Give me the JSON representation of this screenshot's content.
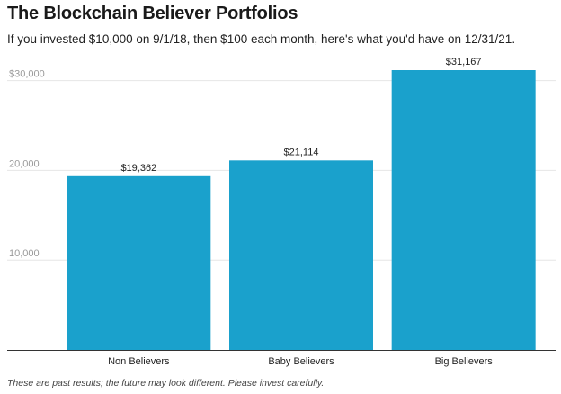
{
  "title": "The Blockchain Believer Portfolios",
  "subtitle": "If you invested $10,000 on 9/1/18, then $100 each month, here's what you'd have on 12/31/21.",
  "footnote": "These are past results; the future may look different. Please invest carefully.",
  "colors": {
    "bar": "#1aa1cc",
    "grid": "#e6e6e6",
    "axis": "#333333"
  },
  "chart_data": {
    "type": "bar",
    "title": "The Blockchain Believer Portfolios",
    "subtitle": "If you invested $10,000 on 9/1/18, then $100 each month, here's what you'd have on 12/31/21.",
    "categories": [
      "Non Believers",
      "Baby Believers",
      "Big Believers"
    ],
    "values": [
      19362,
      21114,
      31167
    ],
    "data_labels": [
      "$19,362",
      "$21,114",
      "$31,167"
    ],
    "ylim": [
      0,
      31167
    ],
    "yticks": [
      10000,
      20000,
      30000
    ],
    "ytick_labels": [
      "10,000",
      "20,000",
      "$30,000"
    ],
    "grid": true
  }
}
